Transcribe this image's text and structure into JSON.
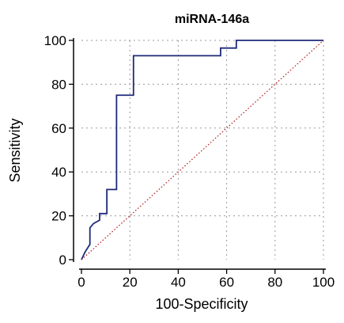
{
  "chart_data": {
    "type": "line",
    "title": "miRNA-146a",
    "xlabel": "100-Specificity",
    "ylabel": "Sensitivity",
    "xlim": [
      0,
      100
    ],
    "ylim": [
      0,
      100
    ],
    "xticks": [
      "0",
      "20",
      "40",
      "60",
      "80",
      "100"
    ],
    "yticks": [
      "0",
      "20",
      "40",
      "60",
      "80",
      "100"
    ],
    "grid": true,
    "series": [
      {
        "kind": "roc-curve",
        "color": "#1f2a7a",
        "x": [
          0,
          0,
          1.5,
          3.5,
          3.5,
          5,
          7.5,
          7.5,
          10.5,
          10.5,
          14.5,
          14.5,
          21.5,
          21.5,
          57.5,
          57.5,
          64,
          64,
          100
        ],
        "y": [
          0,
          0,
          3.5,
          7,
          14.5,
          16.5,
          18,
          21,
          21,
          32,
          32,
          75,
          75,
          93,
          93,
          96.5,
          96.5,
          100,
          100
        ]
      },
      {
        "kind": "reference-line",
        "color": "#b01515",
        "x": [
          0,
          100
        ],
        "y": [
          0,
          100
        ]
      }
    ]
  }
}
